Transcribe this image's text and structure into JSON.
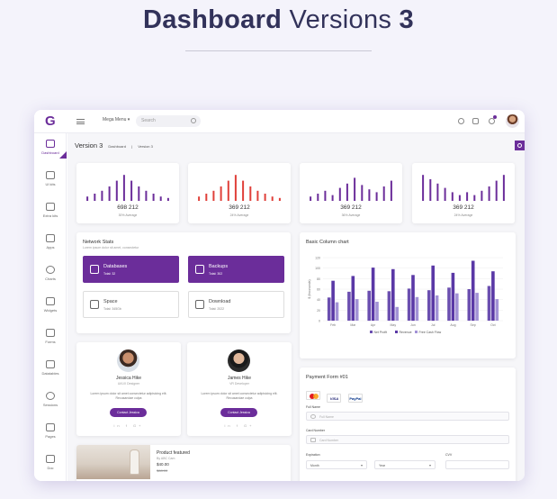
{
  "hero": {
    "title_bold": "Dashboard",
    "title_light": "Versions",
    "title_num": "3"
  },
  "brand": {
    "logo": "G",
    "accent": "#6b2d9a",
    "red": "#e0403a"
  },
  "topbar": {
    "mega_menu": "Mega Menu ▾",
    "search_placeholder": "Search"
  },
  "sidebar": {
    "items": [
      {
        "label": "Dashboard",
        "icon": "chart-icon"
      },
      {
        "label": "UI kits",
        "icon": "phone-icon"
      },
      {
        "label": "Extra kits",
        "icon": "briefcase-icon"
      },
      {
        "label": "Apps",
        "icon": "chat-icon"
      },
      {
        "label": "Charts",
        "icon": "pie-chart-icon"
      },
      {
        "label": "Widgets",
        "icon": "widgets-icon"
      },
      {
        "label": "Forms",
        "icon": "form-icon"
      },
      {
        "label": "Datatables",
        "icon": "table-icon"
      },
      {
        "label": "Sessions",
        "icon": "user-icon"
      },
      {
        "label": "Pages",
        "icon": "hand-icon"
      },
      {
        "label": "Doc",
        "icon": "doc-icon"
      }
    ]
  },
  "page": {
    "title": "Version 3",
    "breadcrumb_home": "Dashboard",
    "breadcrumb_sep": "|",
    "breadcrumb_current": "Version 3"
  },
  "stats": [
    {
      "value": "698 212",
      "sub": "30% Average",
      "color": "#6b2d9a",
      "bars": [
        0.15,
        0.25,
        0.35,
        0.5,
        0.7,
        0.9,
        0.7,
        0.5,
        0.35,
        0.25,
        0.15,
        0.1
      ]
    },
    {
      "value": "369 212",
      "sub": "24% Average",
      "color": "#e0403a",
      "bars": [
        0.15,
        0.25,
        0.35,
        0.5,
        0.7,
        0.9,
        0.7,
        0.5,
        0.35,
        0.25,
        0.15,
        0.1
      ]
    },
    {
      "value": "369 212",
      "sub": "36% Average",
      "color": "#6b2d9a",
      "bars": [
        0.15,
        0.25,
        0.35,
        0.2,
        0.45,
        0.6,
        0.8,
        0.55,
        0.4,
        0.3,
        0.5,
        0.7
      ]
    },
    {
      "value": "369 212",
      "sub": "24% Average",
      "color": "#6b2d9a",
      "bars": [
        0.9,
        0.75,
        0.6,
        0.45,
        0.3,
        0.2,
        0.3,
        0.2,
        0.35,
        0.5,
        0.7,
        0.9
      ]
    }
  ],
  "network": {
    "title": "Network Stats",
    "subtitle": "Lorem ipsum dolor sit amet, consectetur",
    "tiles": [
      {
        "name": "Databases",
        "total": "Total: 32",
        "icon": "database-icon"
      },
      {
        "name": "Backups",
        "total": "Total: 302",
        "icon": "backup-icon"
      },
      {
        "name": "Space",
        "total": "Total: 345Gb",
        "icon": "storage-icon"
      },
      {
        "name": "Download",
        "total": "Total: 2022",
        "icon": "download-icon"
      }
    ]
  },
  "column_chart": {
    "title": "Basic Column chart"
  },
  "chart_data": {
    "type": "bar",
    "title": "",
    "ylabel": "$ (thousands)",
    "ylim": [
      0,
      120
    ],
    "yticks": [
      0,
      20,
      40,
      60,
      80,
      100,
      120
    ],
    "categories": [
      "Feb",
      "Mar",
      "Apr",
      "May",
      "Jun",
      "Jul",
      "Aug",
      "Sep",
      "Oct"
    ],
    "series": [
      {
        "name": "Net Profit",
        "color": "#6b4fb0",
        "values": [
          44,
          55,
          57,
          56,
          61,
          58,
          63,
          60,
          66
        ]
      },
      {
        "name": "Revenue",
        "color": "#5a38a6",
        "values": [
          76,
          85,
          101,
          98,
          87,
          105,
          91,
          114,
          94
        ]
      },
      {
        "name": "Free Cash Flow",
        "color": "#a292d6",
        "values": [
          35,
          41,
          36,
          26,
          45,
          48,
          52,
          53,
          41
        ]
      }
    ],
    "grid": true,
    "legend": "bottom"
  },
  "profiles": [
    {
      "name": "Jessica Hike",
      "role": "UI/UX Designer",
      "desc": "Lorem ipsum dolor sit amet consectetur adipisicing elit. Recusandae culpa",
      "button": "Contact Jessica",
      "social": "in f G+"
    },
    {
      "name": "James Hike",
      "role": "VR Developer",
      "desc": "Lorem ipsum dolor sit amet consectetur adipisicing elit. Recusandae culpa",
      "button": "Contact Jessica",
      "social": "in f G+"
    }
  ],
  "product": {
    "title": "Product featured",
    "by": "By ABC Cam",
    "price": "$40.00",
    "old_price": "$88.00"
  },
  "payment": {
    "title": "Payment Form #01",
    "cards": [
      "Mastercard",
      "VISA",
      "PayPal"
    ],
    "full_name_label": "Full Name",
    "full_name_placeholder": "Full Name",
    "card_label": "Card Number",
    "card_placeholder": "Card Number",
    "expiration_label": "Expiration",
    "month_value": "Month",
    "year_value": "Year",
    "cvv_label": "CVV"
  }
}
